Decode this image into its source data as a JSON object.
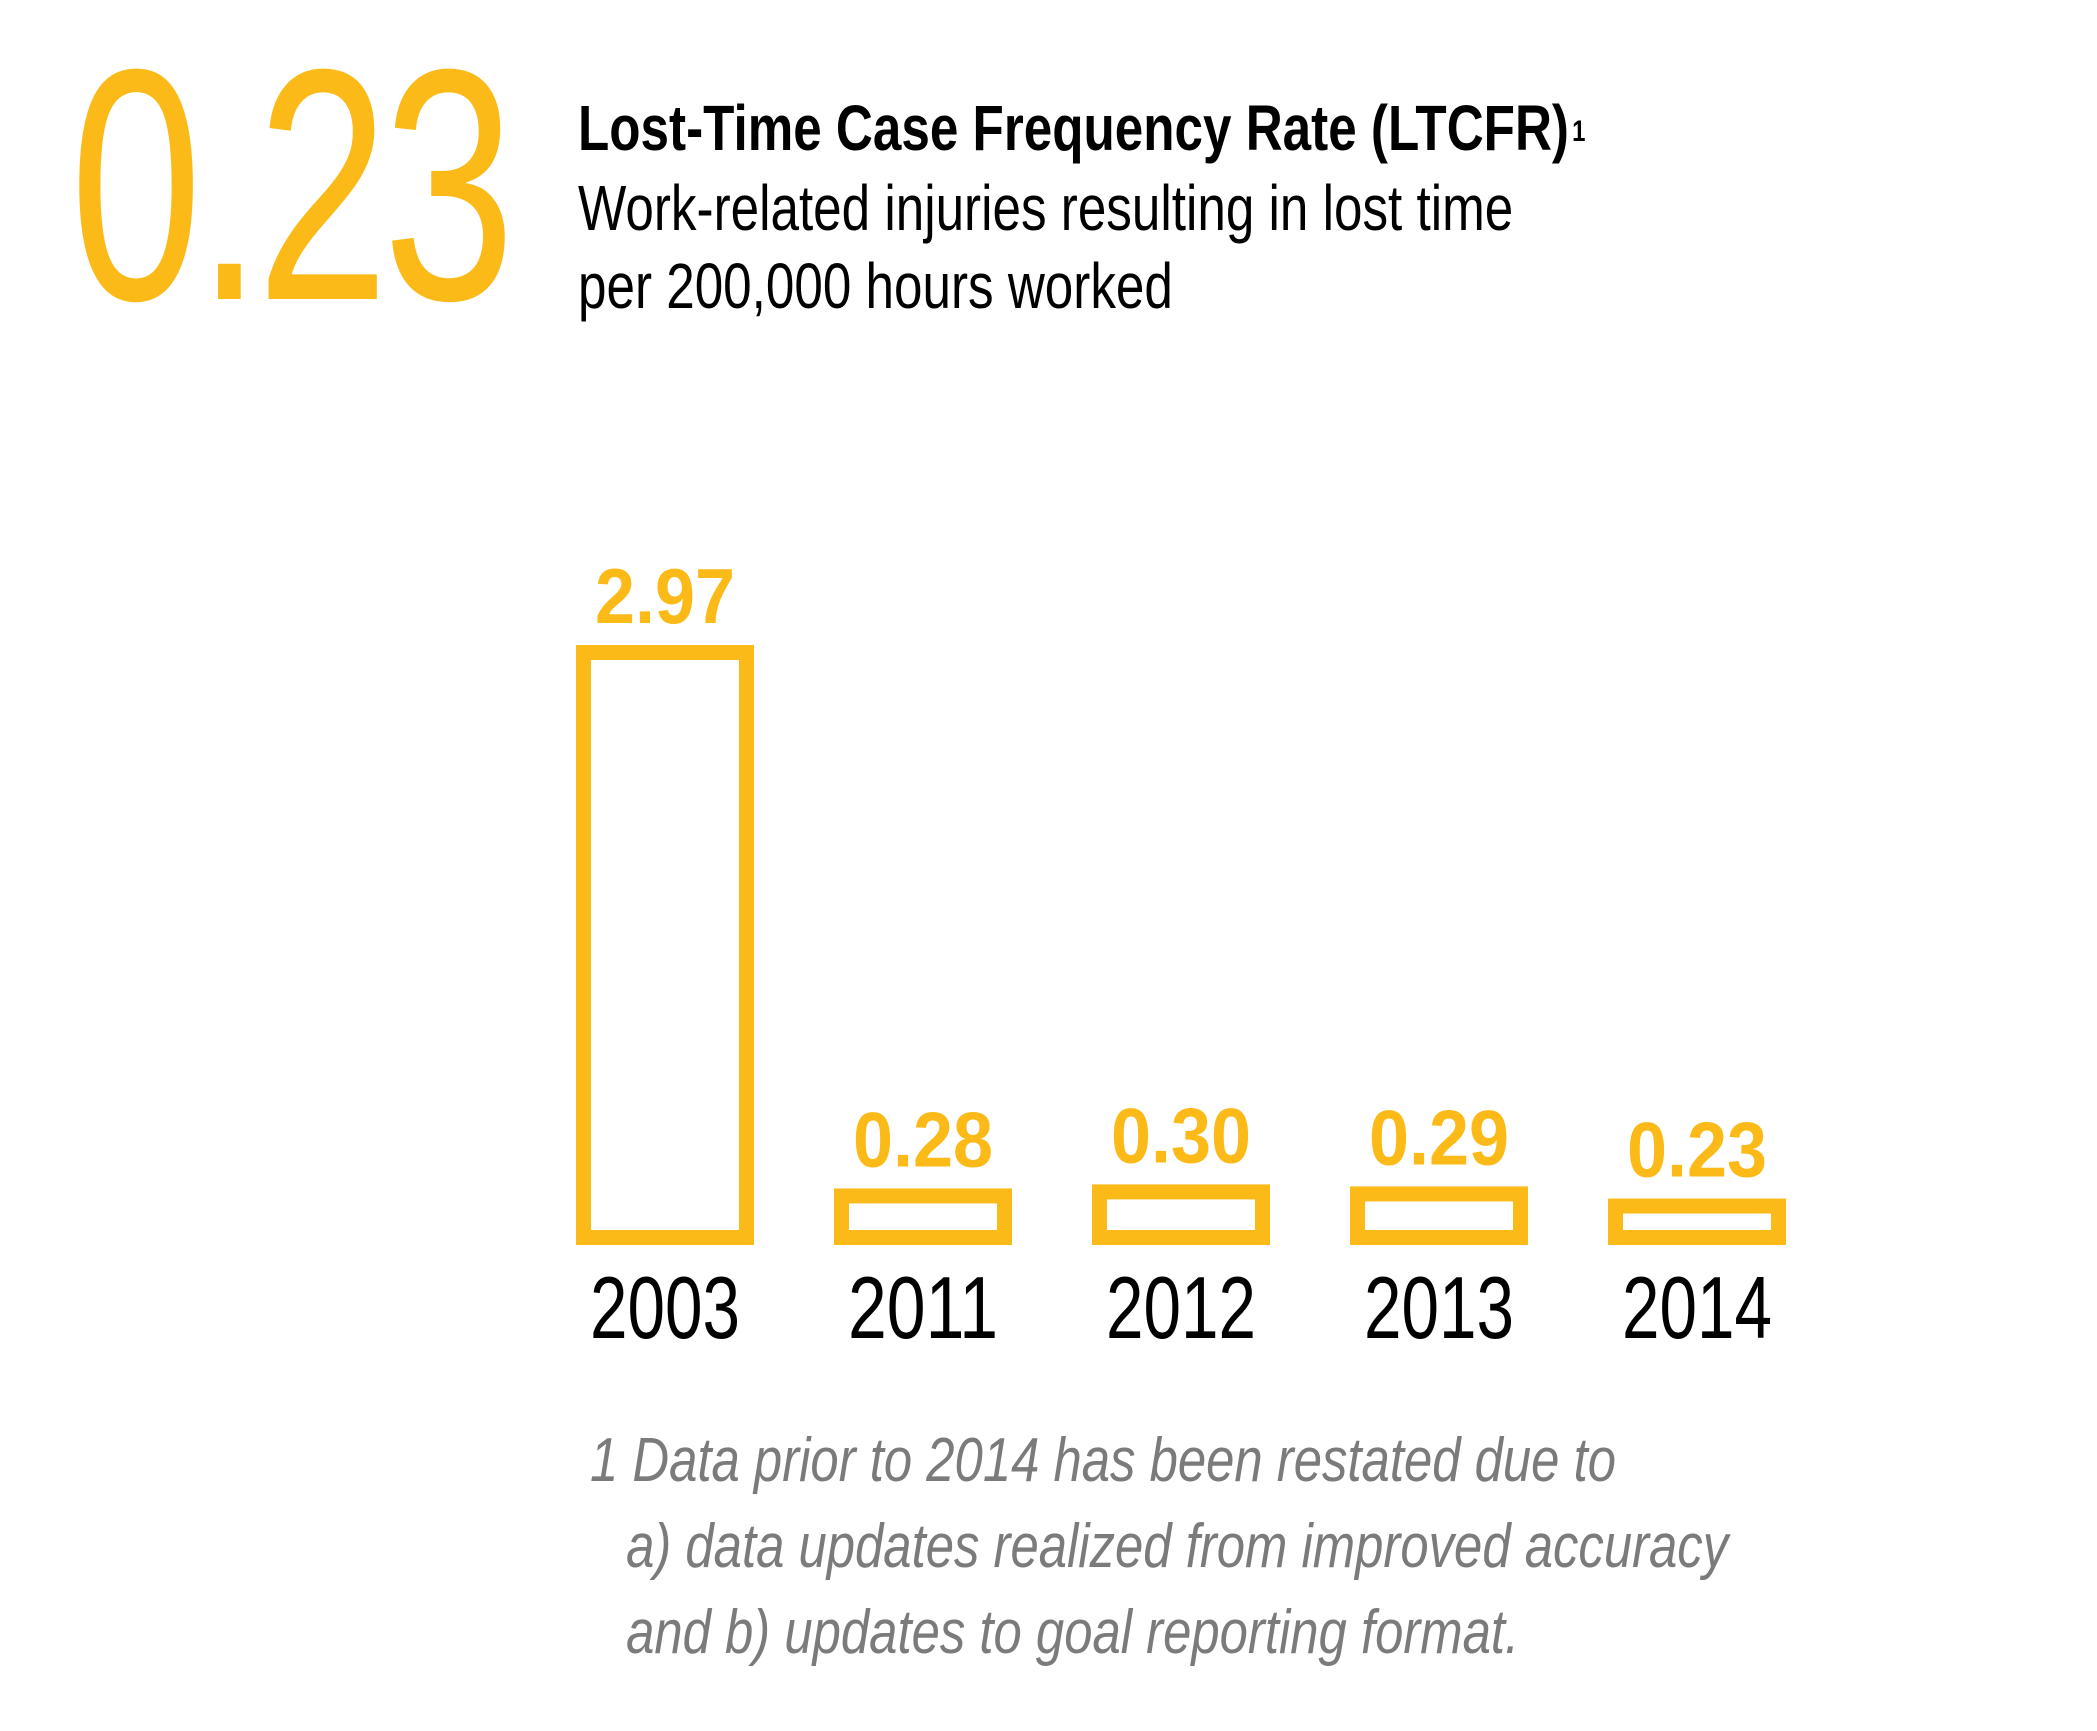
{
  "headline": {
    "value": "0.23",
    "title": "Lost-Time Case Frequency Rate (LTCFR)",
    "title_footnote_mark": "1",
    "subtitle_line1": "Work-related injuries resulting in lost time",
    "subtitle_line2": "per 200,000 hours worked"
  },
  "colors": {
    "accent": "#FBBA18",
    "text": "#000000",
    "footnote": "#7B7B7B"
  },
  "chart_data": {
    "type": "bar",
    "title": "Lost-Time Case Frequency Rate (LTCFR)",
    "categories": [
      "2003",
      "2011",
      "2012",
      "2013",
      "2014"
    ],
    "values": [
      2.97,
      0.28,
      0.3,
      0.29,
      0.23
    ],
    "value_labels": [
      "2.97",
      "0.28",
      "0.30",
      "0.29",
      "0.23"
    ],
    "xlabel": "",
    "ylabel": "",
    "ylim": [
      0,
      2.97
    ],
    "grid": false,
    "bar_style": "outline"
  },
  "footnote": {
    "line1": "1 Data prior to 2014 has been restated due to",
    "line2": "a) data updates realized from improved accuracy",
    "line3": "and b) updates to goal reporting format."
  }
}
